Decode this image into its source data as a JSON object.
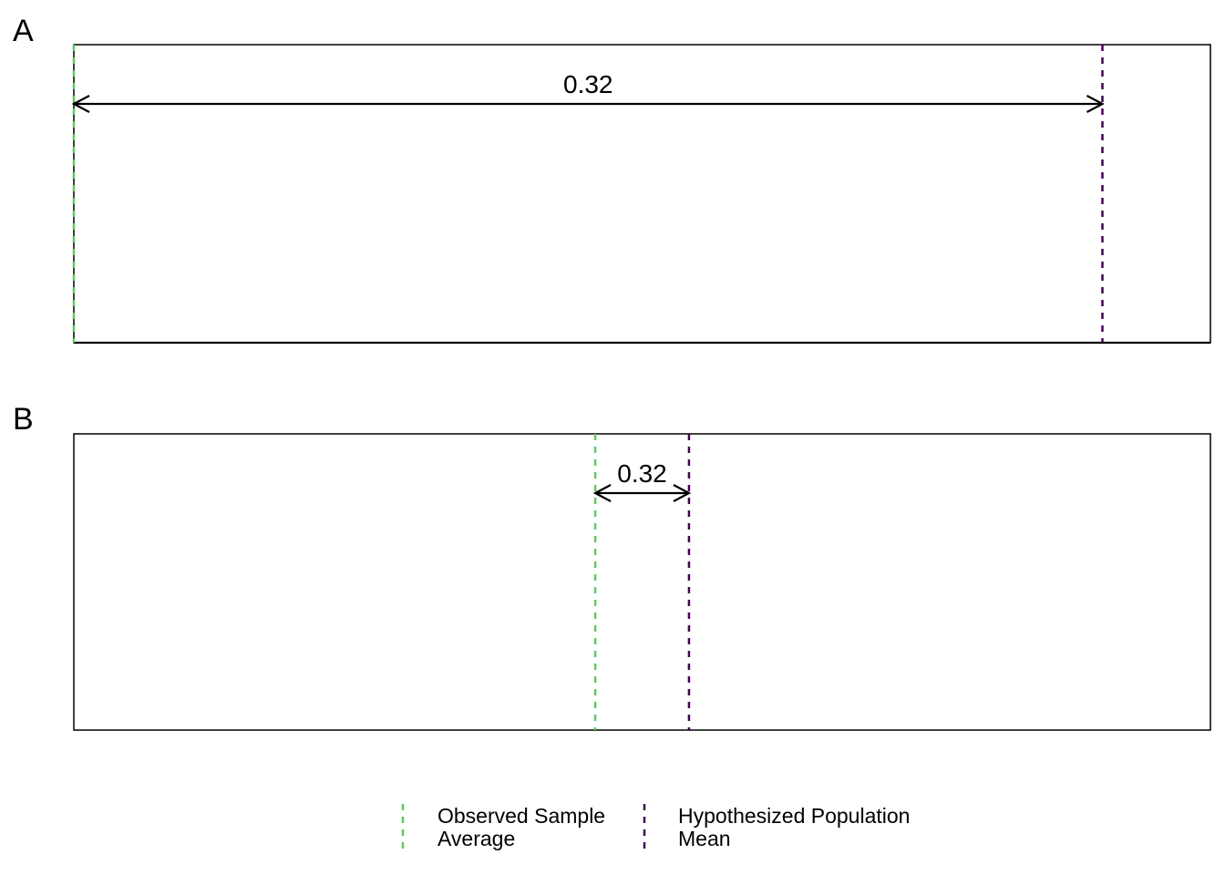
{
  "chart_data": [
    {
      "type": "line",
      "panel": "A",
      "title": "",
      "xlabel": "",
      "ylabel": "",
      "grid": false,
      "xlim": [
        0.0,
        0.3536
      ],
      "vlines": [
        {
          "series": "observed",
          "x": 0.0
        },
        {
          "series": "hypothesized",
          "x": 0.32
        }
      ],
      "annotation": {
        "x_from": 0.0,
        "x_to": 0.32,
        "label": "0.32",
        "style": "double-arrow"
      }
    },
    {
      "type": "line",
      "panel": "B",
      "title": "",
      "xlabel": "",
      "ylabel": "",
      "grid": false,
      "xlim": [
        -1.78,
        2.1
      ],
      "vlines": [
        {
          "series": "observed",
          "x": 0.0
        },
        {
          "series": "hypothesized",
          "x": 0.32
        }
      ],
      "annotation": {
        "x_from": 0.0,
        "x_to": 0.32,
        "label": "0.32",
        "style": "double-arrow"
      }
    }
  ],
  "legend": {
    "placement": "bottom-center",
    "items": [
      {
        "key": "observed",
        "line1": "Observed Sample",
        "line2": "Average",
        "color": "#5ec962",
        "linestyle": "dashed"
      },
      {
        "key": "hypothesized",
        "line1": "Hypothesized Population",
        "line2": "Mean",
        "color": "#440154",
        "linestyle": "dashed"
      }
    ]
  }
}
